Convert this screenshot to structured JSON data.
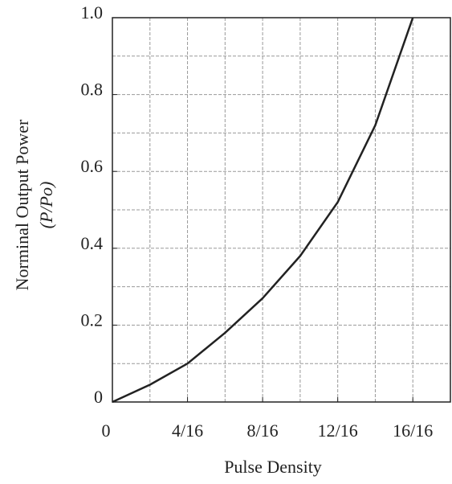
{
  "chart_data": {
    "type": "line",
    "xlabel": "Pulse Density",
    "ylabel": "Norminal Output Power",
    "ylabel_unit": "(P/Po)",
    "x": [
      0,
      0.125,
      0.25,
      0.375,
      0.5,
      0.625,
      0.75,
      0.875,
      1.0
    ],
    "series": [
      {
        "color": "#222222",
        "values": [
          0,
          0.045,
          0.1,
          0.18,
          0.27,
          0.38,
          0.52,
          0.72,
          1.0
        ]
      }
    ],
    "xlim": [
      0,
      1.125
    ],
    "ylim": [
      0,
      1.0
    ],
    "xticks": [
      0,
      {
        "value": 0.25,
        "label": "4/16"
      },
      {
        "value": 0.5,
        "label": "8/16"
      },
      {
        "value": 0.75,
        "label": "12/16"
      },
      {
        "value": 1.0,
        "label": "16/16"
      }
    ],
    "yticks": [
      0,
      0.2,
      0.4,
      0.6,
      0.8,
      {
        "value": 1.0,
        "label": "1.0"
      }
    ],
    "xgrid": [
      0.125,
      0.25,
      0.375,
      0.5,
      0.625,
      0.75,
      0.875,
      1.0
    ],
    "ygrid": [
      0.1,
      0.2,
      0.3,
      0.4,
      0.5,
      0.6,
      0.7,
      0.8,
      0.9
    ],
    "grid": true
  }
}
